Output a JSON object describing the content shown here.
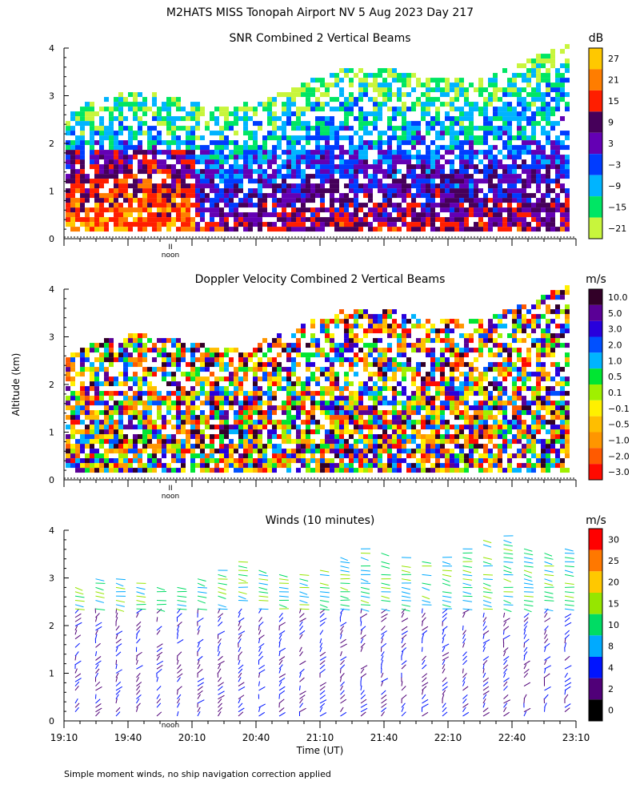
{
  "figure": {
    "title": "M2HATS MISS Tonopah Airport NV   5 Aug 2023 Day 217",
    "shared_ylabel": "Altitude (km)",
    "footnote": "Simple moment winds, no ship navigation correction applied",
    "noon_label": "noon",
    "noon_mark": "II"
  },
  "chart_data": [
    {
      "type": "heatmap",
      "title": "SNR Combined 2 Vertical Beams",
      "ylim": [
        0,
        4
      ],
      "yticks": [
        "0",
        "1",
        "2",
        "3",
        "4"
      ],
      "colorbar": {
        "unit": "dB",
        "labels": [
          "27",
          "21",
          "15",
          "9",
          "3",
          "−3",
          "−9",
          "−15",
          "−21"
        ],
        "colors": [
          "#ffc800",
          "#ff7d00",
          "#ff1e00",
          "#46005a",
          "#6400b4",
          "#003cff",
          "#00b4ff",
          "#00e664",
          "#c8f53c"
        ]
      }
    },
    {
      "type": "heatmap",
      "title": "Doppler Velocity Combined 2 Vertical Beams",
      "ylim": [
        0,
        4
      ],
      "yticks": [
        "0",
        "1",
        "2",
        "3",
        "4"
      ],
      "colorbar": {
        "unit": "m/s",
        "labels": [
          "10.0",
          "5.0",
          "3.0",
          "2.0",
          "1.0",
          "0.5",
          "0.1",
          "−0.1",
          "−0.5",
          "−1.0",
          "−2.0",
          "−3.0"
        ],
        "colors": [
          "#320028",
          "#5a0096",
          "#2800dc",
          "#0050ff",
          "#00b4ff",
          "#00e632",
          "#a0f000",
          "#fff000",
          "#ffbe00",
          "#ff9600",
          "#ff5a00",
          "#ff0a00"
        ]
      }
    },
    {
      "type": "scatter",
      "title": "Winds (10 minutes)",
      "ylim": [
        0,
        4
      ],
      "yticks": [
        "0",
        "1",
        "2",
        "3",
        "4"
      ],
      "xlabel": "Time (UT)",
      "xticks": [
        "19:10",
        "19:40",
        "20:10",
        "20:40",
        "21:10",
        "21:40",
        "22:10",
        "22:40",
        "23:10"
      ],
      "colorbar": {
        "unit": "m/s",
        "labels": [
          "30",
          "25",
          "20",
          "15",
          "10",
          "8",
          "4",
          "2",
          "0"
        ],
        "colors": [
          "#ff0000",
          "#ff7800",
          "#ffc800",
          "#96e600",
          "#00dc64",
          "#00aaff",
          "#0014ff",
          "#500078",
          "#000000"
        ]
      }
    }
  ]
}
